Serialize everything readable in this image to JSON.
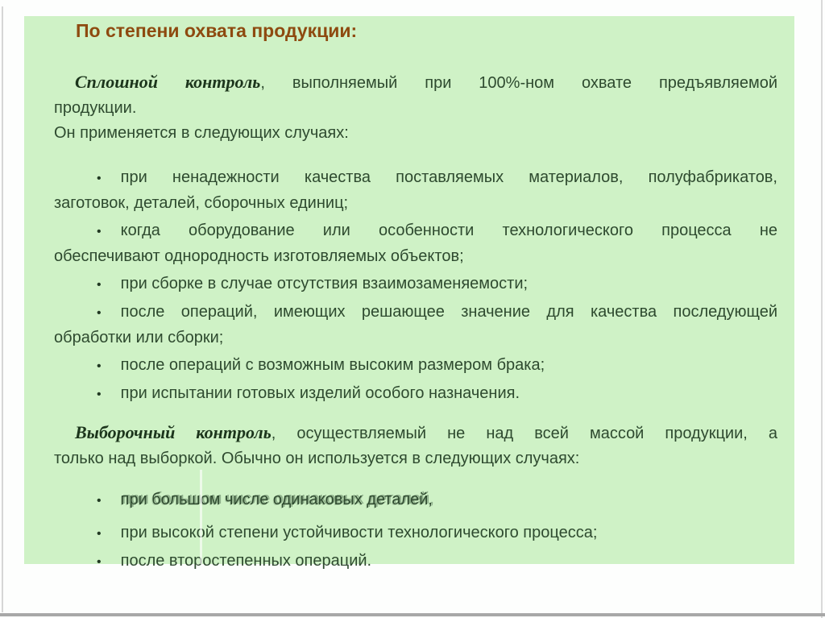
{
  "slide": {
    "title": "По степени охвата продукции:",
    "glyphs": {
      "bullet": "•"
    },
    "colors": {
      "page_bg": "#fdfefd",
      "panel_bg": "#cff2c6",
      "title_text": "#8e4a10",
      "body_text": "#2e4a2f",
      "serif_lead_text": "#1c351c",
      "edge_line": "#d6d6d6",
      "bottom_line": "#a8a8a8"
    },
    "section1": {
      "lead": {
        "bold": "Сплошной  контроль",
        "line1_rest": ",  выполняемый  при  100%-ном  охвате  предъявляемой",
        "line2": "продукции.",
        "line3": "Он применяется в следующих случаях:"
      },
      "bullets": [
        {
          "lines": [
            "при ненадежности качества поставляемых материалов, полуфабрикатов,",
            "заготовок, деталей, сборочных единиц;"
          ]
        },
        {
          "lines": [
            "когда оборудование или особенности технологического процесса не",
            "обеспечивают однородность изготовляемых объектов;"
          ]
        },
        {
          "lines": [
            "при сборке в случае отсутствия взаимозаменяемости;"
          ]
        },
        {
          "lines": [
            "после операций, имеющих решающее значение для качества последующей",
            "обработки или сборки;"
          ]
        },
        {
          "lines": [
            "после операций с возможным высоким размером брака;"
          ]
        },
        {
          "lines": [
            "при испытании готовых изделий особого назначения."
          ]
        }
      ]
    },
    "section2": {
      "lead": {
        "bold": "Выборочный  контроль",
        "line1_rest": ",  осуществляемый  не  над  всей  массой  продукции,  а",
        "line2": "только над выборкой. Обычно он используется в следующих случаях:"
      },
      "bullets": [
        {
          "lines": [
            "при большом числе одинаковых деталей,"
          ]
        },
        {
          "lines": [
            "при высокой степени устойчивости технологического процесса;"
          ]
        },
        {
          "lines": [
            "после второстепенных операций."
          ]
        }
      ]
    }
  }
}
